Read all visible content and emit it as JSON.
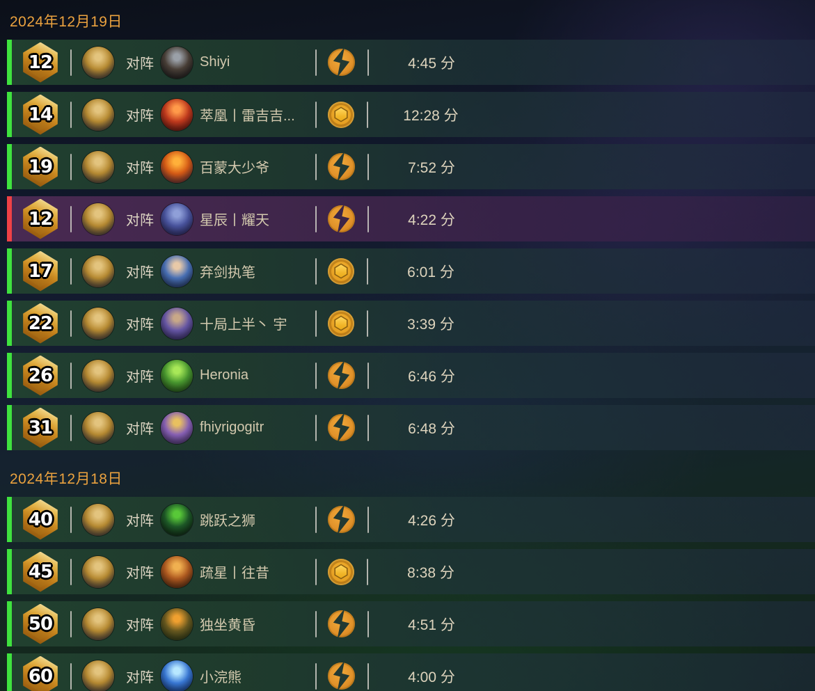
{
  "labels": {
    "vs": "对阵",
    "minutes_suffix": "分"
  },
  "colors": {
    "date_text": "#eba23f",
    "win_bar": "#3fe23f",
    "loss_bar": "#ef4146",
    "name_text": "#d3c9ae",
    "time_text": "#ded4bd",
    "gold_icon": "#e59f22"
  },
  "player_avatar_colors": [
    "#e3c47e",
    "#b98c33",
    "#232742"
  ],
  "days": [
    {
      "date": "2024年12月19日",
      "matches": [
        {
          "rank": "12",
          "opponent": "Shiyi",
          "icon": "bolt",
          "duration": "4:45",
          "result": "win",
          "avatar_colors": [
            "#9aa0a8",
            "#4a4038",
            "#141418"
          ]
        },
        {
          "rank": "14",
          "opponent": "萃凰丨雷吉吉...",
          "icon": "coin",
          "duration": "12:28",
          "result": "win",
          "avatar_colors": [
            "#ff9a4a",
            "#c43b1e",
            "#4a0f10"
          ]
        },
        {
          "rank": "19",
          "opponent": "百蒙大少爷",
          "icon": "bolt",
          "duration": "7:52",
          "result": "win",
          "avatar_colors": [
            "#ffb03a",
            "#d95c16",
            "#3a2142"
          ]
        },
        {
          "rank": "12",
          "opponent": "星辰丨耀天",
          "icon": "bolt",
          "duration": "4:22",
          "result": "loss",
          "avatar_colors": [
            "#8f9fd8",
            "#4a55a0",
            "#262050"
          ]
        },
        {
          "rank": "17",
          "opponent": "弃剑执笔",
          "icon": "coin",
          "duration": "6:01",
          "result": "win",
          "avatar_colors": [
            "#e8c9a8",
            "#4a72b8",
            "#1d2a50"
          ]
        },
        {
          "rank": "22",
          "opponent": "十局上半丶 宇",
          "icon": "coin",
          "duration": "3:39",
          "result": "win",
          "avatar_colors": [
            "#c8a888",
            "#6858a8",
            "#2a2350"
          ]
        },
        {
          "rank": "26",
          "opponent": "Heronia",
          "icon": "bolt",
          "duration": "6:46",
          "result": "win",
          "avatar_colors": [
            "#a8e858",
            "#4a9a30",
            "#1d4016"
          ]
        },
        {
          "rank": "31",
          "opponent": "fhiyrigogitr",
          "icon": "bolt",
          "duration": "6:48",
          "result": "win",
          "avatar_colors": [
            "#e8c060",
            "#8a62b8",
            "#3a2a58"
          ]
        }
      ]
    },
    {
      "date": "2024年12月18日",
      "matches": [
        {
          "rank": "40",
          "opponent": "跳跃之狮",
          "icon": "bolt",
          "duration": "4:26",
          "result": "win",
          "avatar_colors": [
            "#58c838",
            "#1e5a28",
            "#0d1a10"
          ]
        },
        {
          "rank": "45",
          "opponent": "疏星丨往昔",
          "icon": "coin",
          "duration": "8:38",
          "result": "win",
          "avatar_colors": [
            "#f0b050",
            "#b05a20",
            "#402010"
          ]
        },
        {
          "rank": "50",
          "opponent": "独坐黄昏",
          "icon": "bolt",
          "duration": "4:51",
          "result": "win",
          "avatar_colors": [
            "#f0a030",
            "#6a5a20",
            "#1d3318"
          ]
        },
        {
          "rank": "60",
          "opponent": "小浣熊",
          "icon": "bolt",
          "duration": "4:00",
          "result": "win",
          "avatar_colors": [
            "#b8e8ff",
            "#3a7ad8",
            "#102a60"
          ]
        }
      ]
    }
  ]
}
